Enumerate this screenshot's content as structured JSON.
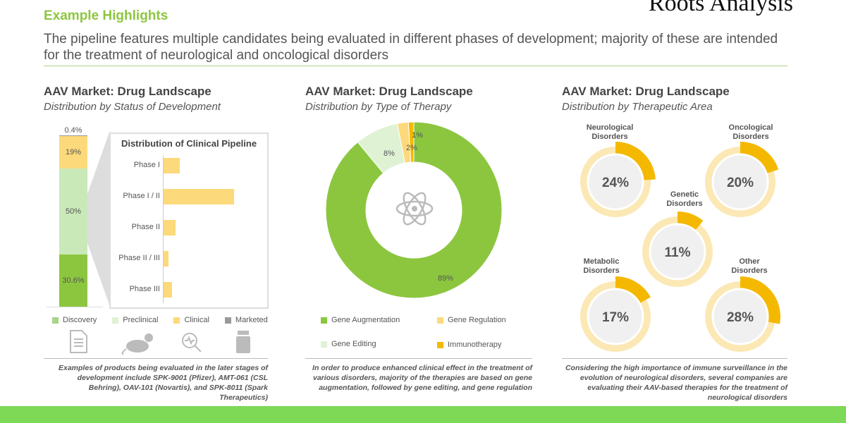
{
  "header": {
    "section": "Example Highlights",
    "subtitle": "The pipeline features multiple candidates being evaluated in different phases of development; majority of these are intended for the treatment of neurological and oncological disorders",
    "logo": "Roots Analysis"
  },
  "colors": {
    "discovery": "#8cc63f",
    "preclinical": "#c9e9b8",
    "clinical": "#fcd97a",
    "marketed": "#999999",
    "immunotherapy": "#f5b800",
    "gene_augmentation": "#8cc63f",
    "footer": "#7ed957"
  },
  "panels": [
    {
      "title": "AAV Market: Drug Landscape",
      "subtitle": "Distribution by Status of Development",
      "note": "Examples of products being evaluated in the later stages of development include SPK-9001 (Pfizer), AMT-061 (CSL Behring), OAV-101 (Novartis), and SPK-8011 (Spark Therapeutics)",
      "icons": [
        "document-icon",
        "rat-icon",
        "magnifier-icon",
        "medicine-bottle-icon"
      ]
    },
    {
      "title": "AAV Market: Drug Landscape",
      "subtitle": "Distribution by Type of Therapy",
      "note": "In order to produce enhanced clinical effect in the treatment of various disorders, majority of the therapies are based on gene augmentation, followed by gene editing, and gene regulation",
      "center_icon": "atom-icon"
    },
    {
      "title": "AAV Market: Drug Landscape",
      "subtitle": "Distribution by Therapeutic Area",
      "note": "Considering the high importance of immune surveillance in the evolution of neurological disorders, several companies are evaluating their AAV-based therapies for the treatment of neurological disorders"
    }
  ],
  "chart_data": [
    {
      "type": "bar",
      "stacked": true,
      "categories": [
        "Discovery",
        "Preclinical",
        "Clinical",
        "Marketed"
      ],
      "values": [
        30.6,
        50,
        19,
        0.4
      ],
      "labels": [
        "30.6%",
        "50%",
        "19%",
        "0.4%"
      ],
      "legend": [
        "Discovery",
        "Preclinical",
        "Clinical",
        "Marketed"
      ],
      "legend_placement": "bottom"
    },
    {
      "type": "bar",
      "orientation": "horizontal",
      "title": "Distribution of Clinical Pipeline",
      "categories": [
        "Phase I",
        "Phase I / II",
        "Phase II",
        "Phase II / III",
        "Phase III"
      ],
      "values": [
        23,
        100,
        17,
        7,
        12
      ]
    },
    {
      "type": "pie",
      "donut": true,
      "categories": [
        "Gene Augmentation",
        "Gene Editing",
        "Gene Regulation",
        "Immunotherapy"
      ],
      "values": [
        89,
        8,
        2,
        1
      ],
      "labels": [
        "89%",
        "8%",
        "2%",
        "1%"
      ],
      "legend_placement": "bottom"
    },
    {
      "type": "pie",
      "donut": true,
      "series": [
        {
          "name": "Neurological Disorders",
          "value": 24,
          "label": "24%"
        },
        {
          "name": "Oncological Disorders",
          "value": 20,
          "label": "20%"
        },
        {
          "name": "Genetic Disorders",
          "value": 11,
          "label": "11%"
        },
        {
          "name": "Metabolic Disorders",
          "value": 17,
          "label": "17%"
        },
        {
          "name": "Other Disorders",
          "value": 28,
          "label": "28%"
        }
      ]
    }
  ]
}
